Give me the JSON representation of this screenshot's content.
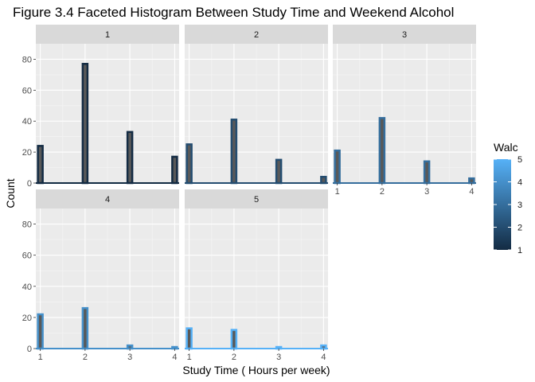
{
  "chart_data": {
    "type": "bar",
    "title": "Figure 3.4 Faceted Histogram Between Study Time and Weekend Alcohol",
    "xlabel": "Study Time ( Hours per week)",
    "ylabel": "Count",
    "xlim": [
      0.9,
      4.1
    ],
    "ylim": [
      0,
      90
    ],
    "x_ticks": [
      "1",
      "2",
      "3",
      "4"
    ],
    "y_ticks": [
      "0",
      "20",
      "40",
      "60",
      "80"
    ],
    "grid": true,
    "legend": {
      "title": "Walc",
      "position": "right",
      "ticks": [
        "1",
        "2",
        "3",
        "4",
        "5"
      ],
      "low_color": "#132B43",
      "high_color": "#56B1F7"
    },
    "facets": [
      {
        "label": "1",
        "walc": 1,
        "x": [
          1,
          2,
          3,
          4
        ],
        "values": [
          24,
          77,
          33,
          17
        ]
      },
      {
        "label": "2",
        "walc": 2,
        "x": [
          1,
          2,
          3,
          4
        ],
        "values": [
          25,
          41,
          15,
          4
        ]
      },
      {
        "label": "3",
        "walc": 3,
        "x": [
          1,
          2,
          3,
          4
        ],
        "values": [
          21,
          42,
          14,
          3
        ]
      },
      {
        "label": "4",
        "walc": 4,
        "x": [
          1,
          2,
          3,
          4
        ],
        "values": [
          22,
          26,
          2,
          1
        ]
      },
      {
        "label": "5",
        "walc": 5,
        "x": [
          1,
          2,
          3,
          4
        ],
        "values": [
          13,
          12,
          1,
          2
        ]
      }
    ]
  }
}
